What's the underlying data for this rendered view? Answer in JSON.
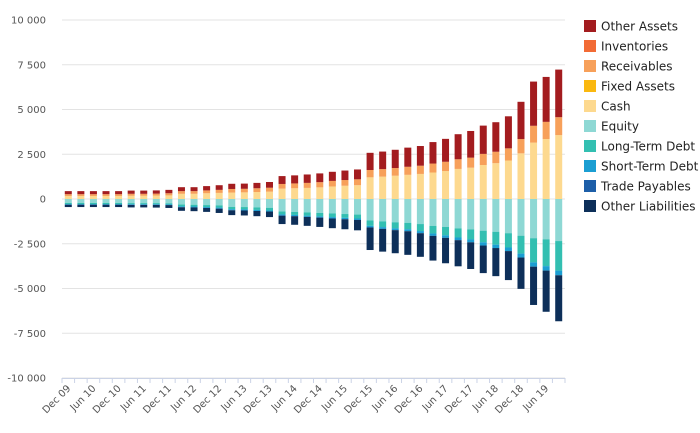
{
  "chart_data": {
    "type": "bar",
    "stacked": true,
    "title": "",
    "xlabel": "",
    "ylabel": "",
    "ylim": [
      -10000,
      10000
    ],
    "yticks": [
      10000,
      7500,
      5000,
      2500,
      0,
      -2500,
      -5000,
      -7500,
      -10000
    ],
    "ytick_labels": [
      "10 000",
      "7 500",
      "5 000",
      "2 500",
      "0",
      "-2 500",
      "-5 000",
      "-7 500",
      "-10 000"
    ],
    "xtick_labels": [
      "Dec 09",
      "Jun 10",
      "Dec 10",
      "Jun 11",
      "Dec 11",
      "Jun 12",
      "Dec 12",
      "Jun 13",
      "Dec 13",
      "Jun 14",
      "Dec 14",
      "Jun 15",
      "Dec 15",
      "Jun 16",
      "Dec 16",
      "Jun 17",
      "Dec 17",
      "Jun 18",
      "Dec 18",
      "Jun 19"
    ],
    "categories": [
      "Dec 09",
      "Mar 10",
      "Jun 10",
      "Sep 10",
      "Dec 10",
      "Mar 11",
      "Jun 11",
      "Sep 11",
      "Dec 11",
      "Mar 12",
      "Jun 12",
      "Sep 12",
      "Dec 12",
      "Mar 13",
      "Jun 13",
      "Sep 13",
      "Dec 13",
      "Mar 14",
      "Jun 14",
      "Sep 14",
      "Dec 14",
      "Mar 15",
      "Jun 15",
      "Sep 15",
      "Dec 15",
      "Mar 16",
      "Jun 16",
      "Sep 16",
      "Dec 16",
      "Mar 17",
      "Jun 17",
      "Sep 17",
      "Dec 17",
      "Mar 18",
      "Jun 18",
      "Sep 18",
      "Dec 18",
      "Mar 19",
      "Jun 19",
      "Sep 19"
    ],
    "legend": "right",
    "series": [
      {
        "name": "Other Assets",
        "side": "asset",
        "color": "#a31c1f",
        "values": [
          170,
          170,
          170,
          170,
          170,
          180,
          180,
          180,
          190,
          220,
          220,
          240,
          260,
          290,
          290,
          300,
          320,
          440,
          450,
          470,
          490,
          510,
          530,
          550,
          960,
          980,
          1020,
          1070,
          1100,
          1200,
          1280,
          1400,
          1490,
          1580,
          1650,
          1790,
          2080,
          2470,
          2510,
          2660
        ]
      },
      {
        "name": "Inventories",
        "side": "asset",
        "color": "#f26b35",
        "values": [
          0,
          0,
          0,
          0,
          0,
          0,
          0,
          0,
          0,
          0,
          0,
          0,
          0,
          0,
          0,
          0,
          0,
          0,
          0,
          0,
          0,
          0,
          0,
          0,
          0,
          0,
          0,
          0,
          0,
          0,
          0,
          0,
          0,
          0,
          0,
          0,
          0,
          0,
          0,
          0
        ]
      },
      {
        "name": "Receivables",
        "side": "asset",
        "color": "#f7a05a",
        "values": [
          100,
          100,
          100,
          100,
          100,
          110,
          110,
          110,
          120,
          150,
          150,
          160,
          170,
          200,
          200,
          210,
          220,
          260,
          270,
          280,
          290,
          310,
          320,
          330,
          410,
          420,
          430,
          450,
          460,
          500,
          520,
          540,
          560,
          620,
          640,
          680,
          800,
          940,
          960,
          1000
        ]
      },
      {
        "name": "Fixed Assets",
        "side": "asset",
        "color": "#fab80f",
        "values": [
          0,
          0,
          0,
          0,
          0,
          0,
          0,
          0,
          0,
          0,
          0,
          0,
          0,
          0,
          0,
          0,
          0,
          0,
          0,
          0,
          0,
          0,
          0,
          0,
          0,
          0,
          0,
          0,
          0,
          0,
          0,
          0,
          0,
          0,
          0,
          0,
          0,
          0,
          0,
          0
        ]
      },
      {
        "name": "Cash",
        "side": "asset",
        "color": "#fdd98f",
        "values": [
          170,
          170,
          170,
          170,
          170,
          180,
          180,
          190,
          200,
          290,
          290,
          320,
          340,
          360,
          370,
          390,
          410,
          580,
          600,
          620,
          650,
          700,
          740,
          770,
          1210,
          1250,
          1300,
          1350,
          1400,
          1480,
          1560,
          1680,
          1750,
          1900,
          2000,
          2150,
          2550,
          3150,
          3350,
          3570
        ]
      },
      {
        "name": "Equity",
        "side": "liability",
        "color": "#8ed8d4",
        "values": [
          220,
          220,
          220,
          220,
          220,
          230,
          230,
          230,
          240,
          310,
          320,
          340,
          360,
          440,
          450,
          470,
          490,
          700,
          720,
          750,
          780,
          810,
          840,
          870,
          1200,
          1250,
          1300,
          1330,
          1400,
          1500,
          1560,
          1640,
          1700,
          1770,
          1830,
          1910,
          2050,
          2190,
          2250,
          2350
        ]
      },
      {
        "name": "Long-Term Debt",
        "side": "liability",
        "color": "#33bfb1",
        "values": [
          60,
          60,
          60,
          60,
          60,
          60,
          60,
          60,
          60,
          100,
          100,
          110,
          120,
          130,
          130,
          140,
          150,
          160,
          170,
          180,
          190,
          200,
          210,
          220,
          300,
          320,
          340,
          360,
          390,
          430,
          470,
          510,
          560,
          650,
          720,
          800,
          1000,
          1350,
          1500,
          1650
        ]
      },
      {
        "name": "Short-Term Debt",
        "side": "liability",
        "color": "#1b9ed2",
        "values": [
          40,
          40,
          40,
          40,
          40,
          40,
          40,
          40,
          40,
          50,
          50,
          50,
          60,
          60,
          60,
          60,
          60,
          70,
          70,
          70,
          70,
          80,
          80,
          80,
          90,
          100,
          100,
          110,
          120,
          130,
          140,
          150,
          160,
          180,
          190,
          200,
          220,
          240,
          250,
          260
        ]
      },
      {
        "name": "Trade Payables",
        "side": "liability",
        "color": "#1d5ea8",
        "values": [
          0,
          0,
          0,
          0,
          0,
          0,
          0,
          0,
          0,
          0,
          0,
          0,
          0,
          0,
          0,
          0,
          0,
          0,
          0,
          0,
          0,
          0,
          0,
          0,
          0,
          0,
          0,
          0,
          0,
          0,
          0,
          0,
          0,
          0,
          0,
          0,
          0,
          0,
          0,
          0
        ]
      },
      {
        "name": "Other Liabilities",
        "side": "liability",
        "color": "#0d2f59",
        "values": [
          130,
          130,
          130,
          130,
          130,
          140,
          140,
          150,
          160,
          200,
          210,
          220,
          240,
          270,
          280,
          290,
          310,
          470,
          480,
          500,
          520,
          540,
          560,
          580,
          1260,
          1270,
          1290,
          1320,
          1320,
          1380,
          1420,
          1460,
          1490,
          1540,
          1570,
          1620,
          1750,
          2140,
          2300,
          2570
        ]
      }
    ]
  }
}
